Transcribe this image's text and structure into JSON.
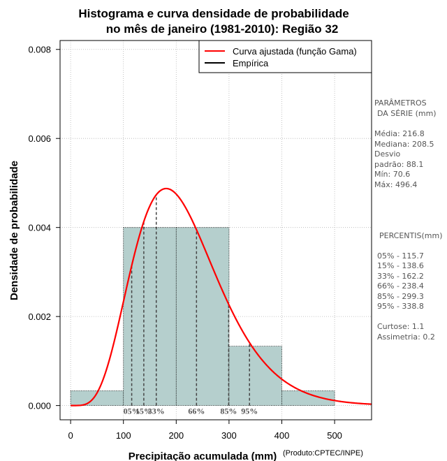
{
  "chart_data": {
    "type": "histogram",
    "title_line1": "Histograma e curva densidade de probabilidade",
    "title_line2": "no mês de janeiro (1981-2010): Região 32",
    "xlabel": "Precipitação acumulada (mm)",
    "ylabel": "Densidade de probabilidade",
    "credit": "(Produto:CPTEC/INPE)",
    "xlim": [
      -20,
      570
    ],
    "ylim": [
      -0.00032,
      0.0082
    ],
    "x_ticks": [
      0,
      100,
      200,
      300,
      400,
      500
    ],
    "y_ticks": [
      0.0,
      0.002,
      0.004,
      0.006,
      0.008
    ],
    "y_tick_labels": [
      "0.000",
      "0.002",
      "0.004",
      "0.006",
      "0.008"
    ],
    "bins": [
      {
        "from": 0,
        "to": 100,
        "density": 0.000333
      },
      {
        "from": 100,
        "to": 200,
        "density": 0.004
      },
      {
        "from": 200,
        "to": 300,
        "density": 0.004
      },
      {
        "from": 300,
        "to": 400,
        "density": 0.001333
      },
      {
        "from": 400,
        "to": 500,
        "density": 0.000333
      }
    ],
    "fitted_curve": {
      "name": "Curva ajustada (função Gama)",
      "mean": 216.8,
      "sd": 88.1,
      "color": "#ff0000"
    },
    "empirical": {
      "name": "Empírica",
      "color": "#000000"
    },
    "percentiles": [
      {
        "label": "05%",
        "value": 115.7
      },
      {
        "label": "15%",
        "value": 138.6
      },
      {
        "label": "33%",
        "value": 162.2
      },
      {
        "label": "66%",
        "value": 238.4
      },
      {
        "label": "85%",
        "value": 299.3
      },
      {
        "label": "95%",
        "value": 338.8
      }
    ],
    "bar_color": "#b5cfcd",
    "legend_position": "top-right"
  },
  "side_panel": {
    "params_title_1": "PARÂMETROS",
    "params_title_2": "DA SÉRIE (mm)",
    "media": "Média:  216.8",
    "mediana": "Mediana:  208.5",
    "desvio_1": "Desvio",
    "desvio_2": "padrão:  88.1",
    "min": "Mín:  70.6",
    "max": "Máx:  496.4",
    "pct_title": "PERCENTIS(mm)",
    "p05": "05% -  115.7",
    "p15": "15% -  138.6",
    "p33": "33% -  162.2",
    "p66": "66% -  238.4",
    "p85": "85% -  299.3",
    "p95": "95% -  338.8",
    "curtose": "Curtose:  1.1",
    "assimetria": "Assimetria:  0.2"
  }
}
